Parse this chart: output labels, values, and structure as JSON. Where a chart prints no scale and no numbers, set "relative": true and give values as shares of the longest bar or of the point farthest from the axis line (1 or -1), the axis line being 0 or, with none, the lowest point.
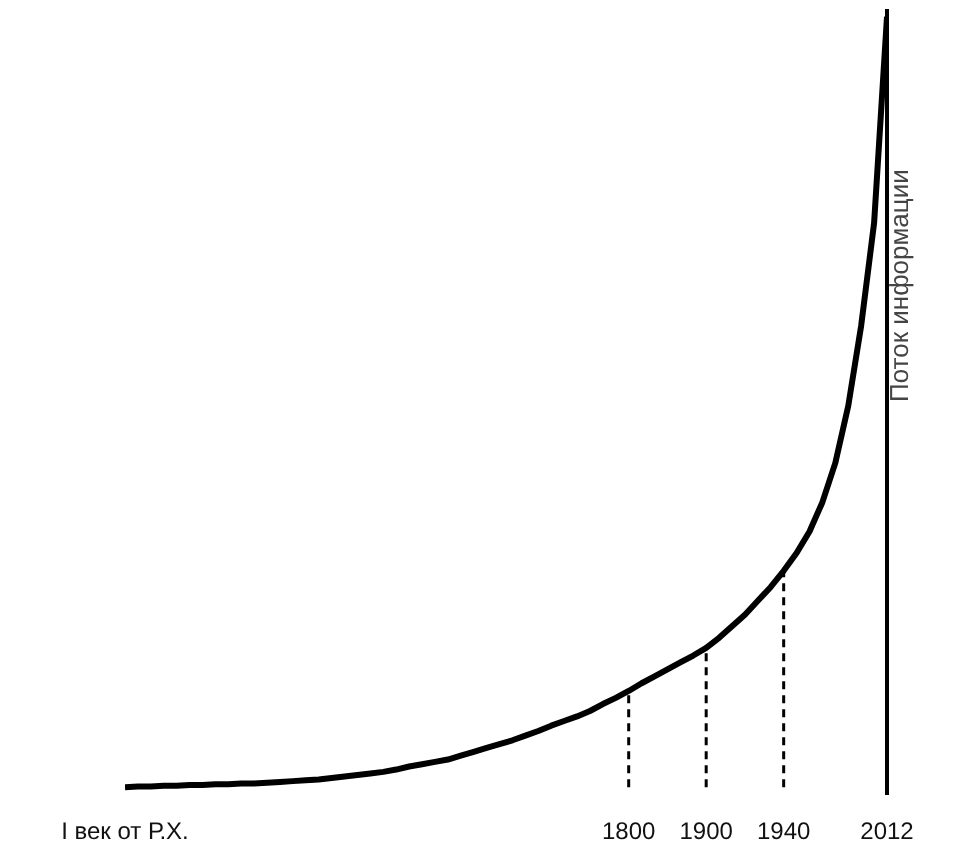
{
  "chart_data": {
    "type": "line",
    "relative": true,
    "ylabel": "Поток информации",
    "categories": [
      "I век от Р.Х.",
      null,
      null,
      null,
      null,
      null,
      null,
      null,
      null,
      null,
      null,
      null,
      null,
      null,
      null,
      null,
      null,
      null,
      null,
      null,
      null,
      null,
      null,
      null,
      null,
      null,
      null,
      null,
      null,
      null,
      null,
      null,
      null,
      null,
      null,
      null,
      null,
      null,
      null,
      "1800",
      null,
      null,
      null,
      null,
      null,
      "1900",
      null,
      null,
      null,
      null,
      null,
      "1940",
      null,
      null,
      null,
      null,
      null,
      null,
      null,
      "2012"
    ],
    "series": [
      {
        "color": "#000000",
        "values": [
          0,
          0.001,
          0.001,
          0.002,
          0.002,
          0.003,
          0.003,
          0.004,
          0.004,
          0.005,
          0.005,
          0.006,
          0.007,
          0.008,
          0.009,
          0.01,
          0.012,
          0.014,
          0.016,
          0.018,
          0.02,
          0.023,
          0.027,
          0.03,
          0.033,
          0.036,
          0.041,
          0.046,
          0.051,
          0.056,
          0.061,
          0.067,
          0.073,
          0.08,
          0.086,
          0.092,
          0.099,
          0.108,
          0.116,
          0.125,
          0.135,
          0.144,
          0.153,
          0.162,
          0.171,
          0.181,
          0.194,
          0.209,
          0.224,
          0.242,
          0.26,
          0.281,
          0.304,
          0.332,
          0.37,
          0.421,
          0.495,
          0.599,
          0.732,
          1
        ]
      }
    ],
    "ref_lines": [
      {
        "axis": "x",
        "value": "1800",
        "line_style": "dashed"
      },
      {
        "axis": "x",
        "value": "1900",
        "line_style": "dashed"
      },
      {
        "axis": "x",
        "value": "1940",
        "line_style": "dashed"
      }
    ],
    "marker": "none",
    "line_style": "solid"
  }
}
